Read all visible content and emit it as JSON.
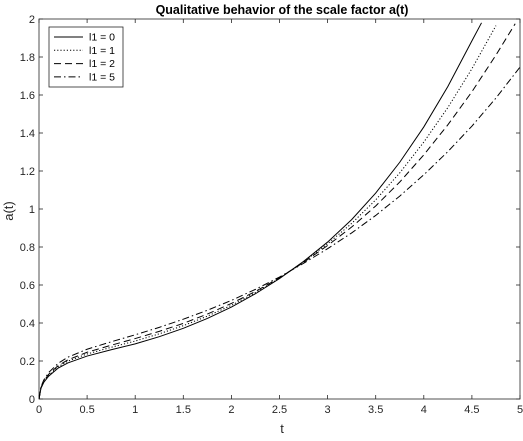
{
  "chart_data": {
    "type": "line",
    "title": "Qualitative behavior of the scale factor a(t)",
    "xlabel": "t",
    "ylabel": "a(t)",
    "xlim": [
      0,
      5
    ],
    "ylim": [
      0,
      2
    ],
    "xticks": [
      "0",
      "0.5",
      "1",
      "1.5",
      "2",
      "2.5",
      "3",
      "3.5",
      "4",
      "4.5",
      "5"
    ],
    "yticks": [
      "0",
      "0.2",
      "0.4",
      "0.6",
      "0.8",
      "1",
      "1.2",
      "1.4",
      "1.6",
      "1.8",
      "2"
    ],
    "grid": false,
    "legend_position": "top-left",
    "colors": {
      "line": "#000000",
      "axis": "#262626"
    },
    "series": [
      {
        "name": "l1 = 0",
        "dash": "solid",
        "x": [
          0,
          0.02,
          0.05,
          0.1,
          0.2,
          0.3,
          0.5,
          0.75,
          1,
          1.25,
          1.5,
          1.75,
          2,
          2.25,
          2.5,
          2.75,
          3,
          3.25,
          3.5,
          3.75,
          4,
          4.25,
          4.5,
          4.6
        ],
        "y": [
          0,
          0.056,
          0.088,
          0.12,
          0.163,
          0.19,
          0.226,
          0.259,
          0.29,
          0.328,
          0.372,
          0.424,
          0.484,
          0.554,
          0.634,
          0.724,
          0.826,
          0.944,
          1.084,
          1.246,
          1.432,
          1.645,
          1.885,
          1.98
        ]
      },
      {
        "name": "l1 = 1",
        "dash": "dotted",
        "x": [
          0,
          0.02,
          0.05,
          0.1,
          0.2,
          0.3,
          0.5,
          0.75,
          1,
          1.25,
          1.5,
          1.75,
          2,
          2.25,
          2.5,
          2.75,
          3,
          3.25,
          3.5,
          3.75,
          4,
          4.25,
          4.5,
          4.75
        ],
        "y": [
          0,
          0.058,
          0.091,
          0.125,
          0.17,
          0.199,
          0.237,
          0.272,
          0.305,
          0.343,
          0.386,
          0.436,
          0.493,
          0.56,
          0.636,
          0.722,
          0.817,
          0.924,
          1.048,
          1.19,
          1.352,
          1.534,
          1.738,
          1.965
        ]
      },
      {
        "name": "l1 = 2",
        "dash": "dashed",
        "x": [
          0,
          0.02,
          0.05,
          0.1,
          0.2,
          0.3,
          0.5,
          0.75,
          1,
          1.25,
          1.5,
          1.75,
          2,
          2.25,
          2.5,
          2.75,
          3,
          3.25,
          3.5,
          3.75,
          4,
          4.25,
          4.5,
          4.75,
          4.95
        ],
        "y": [
          0,
          0.06,
          0.094,
          0.13,
          0.176,
          0.206,
          0.246,
          0.283,
          0.318,
          0.356,
          0.398,
          0.447,
          0.503,
          0.566,
          0.638,
          0.719,
          0.808,
          0.905,
          1.016,
          1.142,
          1.285,
          1.443,
          1.617,
          1.81,
          1.975
        ]
      },
      {
        "name": "l1 = 5",
        "dash": "dashdot",
        "x": [
          0,
          0.02,
          0.05,
          0.1,
          0.2,
          0.3,
          0.5,
          0.75,
          1,
          1.25,
          1.5,
          1.75,
          2,
          2.25,
          2.5,
          2.75,
          3,
          3.25,
          3.5,
          3.75,
          4,
          4.25,
          4.5,
          4.75,
          5
        ],
        "y": [
          0,
          0.064,
          0.1,
          0.139,
          0.188,
          0.22,
          0.262,
          0.301,
          0.338,
          0.377,
          0.42,
          0.467,
          0.519,
          0.577,
          0.642,
          0.714,
          0.791,
          0.874,
          0.966,
          1.068,
          1.18,
          1.302,
          1.436,
          1.584,
          1.747
        ]
      }
    ]
  }
}
